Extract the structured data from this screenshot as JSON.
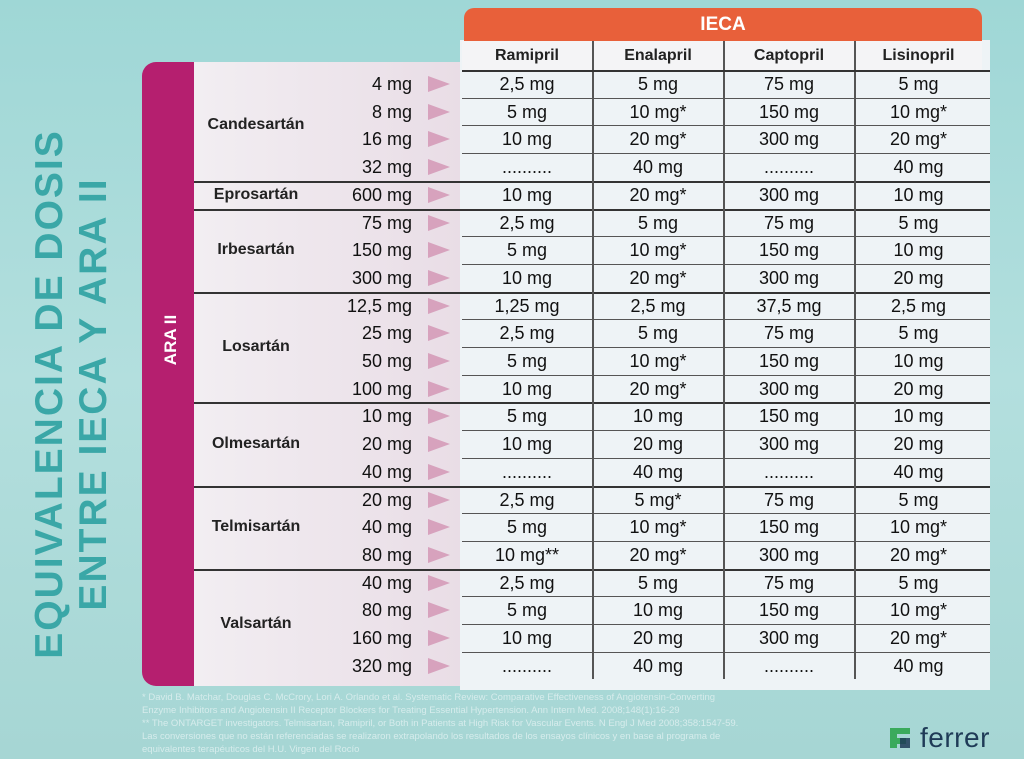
{
  "title": {
    "line1": "EQUIVALENCIA DE DOSIS",
    "line2": "ENTRE IECA Y ARA II"
  },
  "ara_label": "ARA II",
  "ieca_label": "IECA",
  "columns": [
    "Ramipril",
    "Enalapril",
    "Captopril",
    "Lisinopril"
  ],
  "groups": [
    {
      "drug": "Candesartán",
      "rows": [
        {
          "dose": "4 mg",
          "values": [
            "2,5 mg",
            "5 mg",
            "75 mg",
            "5 mg"
          ]
        },
        {
          "dose": "8 mg",
          "values": [
            "5 mg",
            "10 mg*",
            "150 mg",
            "10 mg*"
          ]
        },
        {
          "dose": "16 mg",
          "values": [
            "10 mg",
            "20 mg*",
            "300 mg",
            "20 mg*"
          ]
        },
        {
          "dose": "32 mg",
          "values": [
            "..........",
            "40 mg",
            "..........",
            "40 mg"
          ]
        }
      ]
    },
    {
      "drug": "Eprosartán",
      "rows": [
        {
          "dose": "600 mg",
          "values": [
            "10 mg",
            "20 mg*",
            "300 mg",
            "10 mg"
          ]
        }
      ]
    },
    {
      "drug": "Irbesartán",
      "rows": [
        {
          "dose": "75 mg",
          "values": [
            "2,5 mg",
            "5 mg",
            "75 mg",
            "5 mg"
          ]
        },
        {
          "dose": "150 mg",
          "values": [
            "5 mg",
            "10 mg*",
            "150 mg",
            "10 mg"
          ]
        },
        {
          "dose": "300 mg",
          "values": [
            "10 mg",
            "20 mg*",
            "300 mg",
            "20 mg"
          ]
        }
      ]
    },
    {
      "drug": "Losartán",
      "rows": [
        {
          "dose": "12,5 mg",
          "values": [
            "1,25 mg",
            "2,5 mg",
            "37,5 mg",
            "2,5 mg"
          ]
        },
        {
          "dose": "25 mg",
          "values": [
            "2,5 mg",
            "5 mg",
            "75 mg",
            "5 mg"
          ]
        },
        {
          "dose": "50 mg",
          "values": [
            "5 mg",
            "10 mg*",
            "150 mg",
            "10 mg"
          ]
        },
        {
          "dose": "100 mg",
          "values": [
            "10 mg",
            "20 mg*",
            "300 mg",
            "20 mg"
          ]
        }
      ]
    },
    {
      "drug": "Olmesartán",
      "rows": [
        {
          "dose": "10 mg",
          "values": [
            "5 mg",
            "10 mg",
            "150 mg",
            "10 mg"
          ]
        },
        {
          "dose": "20 mg",
          "values": [
            "10 mg",
            "20 mg",
            "300 mg",
            "20 mg"
          ]
        },
        {
          "dose": "40 mg",
          "values": [
            "..........",
            "40 mg",
            "..........",
            "40 mg"
          ]
        }
      ]
    },
    {
      "drug": "Telmisartán",
      "rows": [
        {
          "dose": "20 mg",
          "values": [
            "2,5 mg",
            "5 mg*",
            "75 mg",
            "5 mg"
          ]
        },
        {
          "dose": "40 mg",
          "values": [
            "5 mg",
            "10 mg*",
            "150 mg",
            "10 mg*"
          ]
        },
        {
          "dose": "80 mg",
          "values": [
            "10 mg**",
            "20 mg*",
            "300 mg",
            "20 mg*"
          ]
        }
      ]
    },
    {
      "drug": "Valsartán",
      "rows": [
        {
          "dose": "40 mg",
          "values": [
            "2,5 mg",
            "5 mg",
            "75 mg",
            "5 mg"
          ]
        },
        {
          "dose": "80 mg",
          "values": [
            "5 mg",
            "10 mg",
            "150 mg",
            "10 mg*"
          ]
        },
        {
          "dose": "160 mg",
          "values": [
            "10 mg",
            "20 mg",
            "300 mg",
            "20 mg*"
          ]
        },
        {
          "dose": "320 mg",
          "values": [
            "..........",
            "40 mg",
            "..........",
            "40 mg"
          ]
        }
      ]
    }
  ],
  "footnotes": [
    "* David B. Matchar, Douglas C. McCrory, Lori A. Orlando et al. Systematic Review: Comparative Effectiveness of Angiotensin-Converting",
    "Enzyme Inhibitors and Angiotensin II Receptor Blockers for Treating Essential Hypertension. Ann Intern Med. 2008;148(1):16-29",
    "** The ONTARGET investigators. Telmisartan, Ramipril, or Both in Patients at High Risk for Vascular Events. N Engl J Med 2008;358:1547-59.",
    "Las conversiones que no están referenciadas se realizaron extrapolando los resultados de los ensayos clínicos y en base al programa de",
    "equivalentes terapéuticos del H.U. Virgen del Rocío"
  ],
  "brand": {
    "name": "ferrer",
    "icon": "ferrer-logo-icon",
    "colors": {
      "green": "#3aaa5c",
      "navy": "#1f3b57"
    }
  },
  "colors": {
    "teal_background": "#9fd7d6",
    "title_teal": "#3aa7a7",
    "ara_magenta": "#b51f6f",
    "ieca_orange": "#e8603a",
    "arrow_pink": "#d7a2bd"
  }
}
